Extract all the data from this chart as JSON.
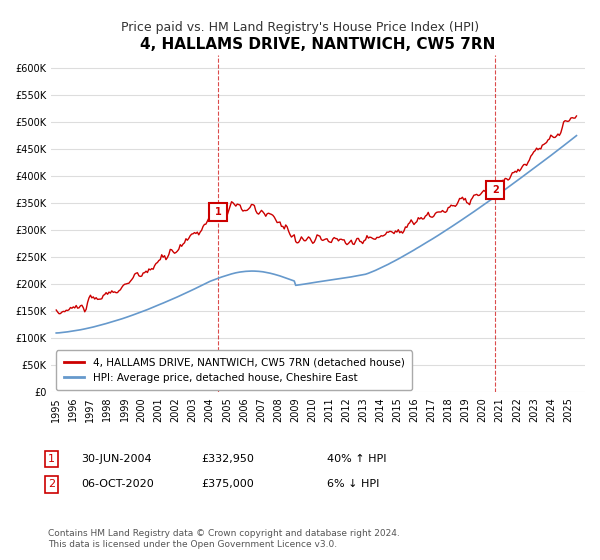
{
  "title": "4, HALLAMS DRIVE, NANTWICH, CW5 7RN",
  "subtitle": "Price paid vs. HM Land Registry's House Price Index (HPI)",
  "ylim": [
    0,
    625000
  ],
  "yticks": [
    0,
    50000,
    100000,
    150000,
    200000,
    250000,
    300000,
    350000,
    400000,
    450000,
    500000,
    550000,
    600000
  ],
  "xlim_start": 1994.7,
  "xlim_end": 2026.0,
  "red_color": "#cc0000",
  "blue_color": "#6699cc",
  "marker1_date": 2004.5,
  "marker1_value": 332950,
  "marker1_label": "1",
  "marker2_date": 2020.75,
  "marker2_value": 375000,
  "marker2_label": "2",
  "legend_line1": "4, HALLAMS DRIVE, NANTWICH, CW5 7RN (detached house)",
  "legend_line2": "HPI: Average price, detached house, Cheshire East",
  "annotation1_date": "30-JUN-2004",
  "annotation1_price": "£332,950",
  "annotation1_hpi": "40% ↑ HPI",
  "annotation2_date": "06-OCT-2020",
  "annotation2_price": "£375,000",
  "annotation2_hpi": "6% ↓ HPI",
  "footer": "Contains HM Land Registry data © Crown copyright and database right 2024.\nThis data is licensed under the Open Government Licence v3.0.",
  "background_color": "#ffffff",
  "grid_color": "#dddddd"
}
